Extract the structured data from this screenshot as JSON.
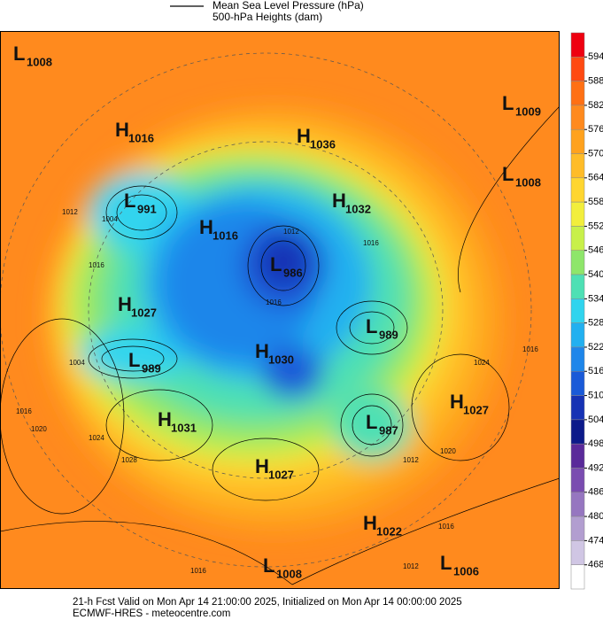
{
  "legend": {
    "line_label": "Mean Sea Level Pressure (hPa)",
    "fill_label": "500-hPa Heights (dam)"
  },
  "centers": [
    {
      "kind": "L",
      "value": 1008
    },
    {
      "kind": "H",
      "value": 1016
    },
    {
      "kind": "H",
      "value": 1036
    },
    {
      "kind": "L",
      "value": 1009
    },
    {
      "kind": "L",
      "value": 1008
    },
    {
      "kind": "L",
      "value": 991
    },
    {
      "kind": "H",
      "value": 1032
    },
    {
      "kind": "H",
      "value": 1016
    },
    {
      "kind": "L",
      "value": 986
    },
    {
      "kind": "H",
      "value": 1027
    },
    {
      "kind": "L",
      "value": 989
    },
    {
      "kind": "L",
      "value": 989
    },
    {
      "kind": "H",
      "value": 1030
    },
    {
      "kind": "H",
      "value": 1027
    },
    {
      "kind": "H",
      "value": 1031
    },
    {
      "kind": "L",
      "value": 987
    },
    {
      "kind": "H",
      "value": 1027
    },
    {
      "kind": "H",
      "value": 1022
    },
    {
      "kind": "L",
      "value": 1008
    },
    {
      "kind": "L",
      "value": 1006
    }
  ],
  "isobar_labels": [
    1012,
    1004,
    1016,
    1004,
    1016,
    1020,
    1024,
    1028,
    1012,
    1016,
    1016,
    1024,
    1020,
    1016,
    1012,
    1016,
    1012,
    1016
  ],
  "colorbar": {
    "ticks": [
      594,
      588,
      582,
      576,
      570,
      564,
      558,
      552,
      546,
      540,
      534,
      528,
      522,
      516,
      510,
      504,
      498,
      492,
      486,
      480,
      474,
      468
    ],
    "colors": [
      "#ee0010",
      "#ff4a12",
      "#ff7014",
      "#ff8a1e",
      "#ffa21e",
      "#ffbc28",
      "#ffd630",
      "#f2ee3c",
      "#c8f04a",
      "#8ee66a",
      "#4ee0b4",
      "#30d4ee",
      "#22b0f0",
      "#1e86ea",
      "#1a5ad8",
      "#1632b4",
      "#0c1a8a",
      "#5a2a9a",
      "#7a4cb0",
      "#9676c0",
      "#b29ed0",
      "#d0c6e4",
      "#ffffff"
    ]
  },
  "footer": {
    "line1": "21-h Fcst Valid on Mon Apr 14 21:00:00 2025, Initialized on Mon Apr 14 00:00:00 2025",
    "line2": "ECMWF-HRES  - meteocentre.com"
  }
}
